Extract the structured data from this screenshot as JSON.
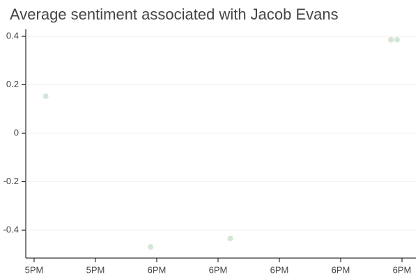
{
  "chart_data": {
    "type": "scatter",
    "title": "Average sentiment associated with Jacob Evans",
    "x": [
      1061.9,
      1079.0,
      1092.0,
      1118.2,
      1119.2
    ],
    "values": [
      0.153,
      -0.469,
      -0.434,
      0.386,
      0.386
    ],
    "color": "#b9d4bd",
    "xlim": [
      1058.64,
      1122.27
    ],
    "xticks": [
      {
        "value": 1060,
        "label": "5PM"
      },
      {
        "value": 1070,
        "label": "5PM"
      },
      {
        "value": 1080,
        "label": "6PM"
      },
      {
        "value": 1090,
        "label": "6PM"
      },
      {
        "value": 1100,
        "label": "6PM"
      },
      {
        "value": 1110,
        "label": "6PM"
      },
      {
        "value": 1120,
        "label": "6PM"
      }
    ],
    "ylim": [
      -0.515,
      0.429
    ],
    "yticks": [
      0.4,
      0.2,
      0,
      -0.2,
      -0.4
    ],
    "grid": true
  }
}
